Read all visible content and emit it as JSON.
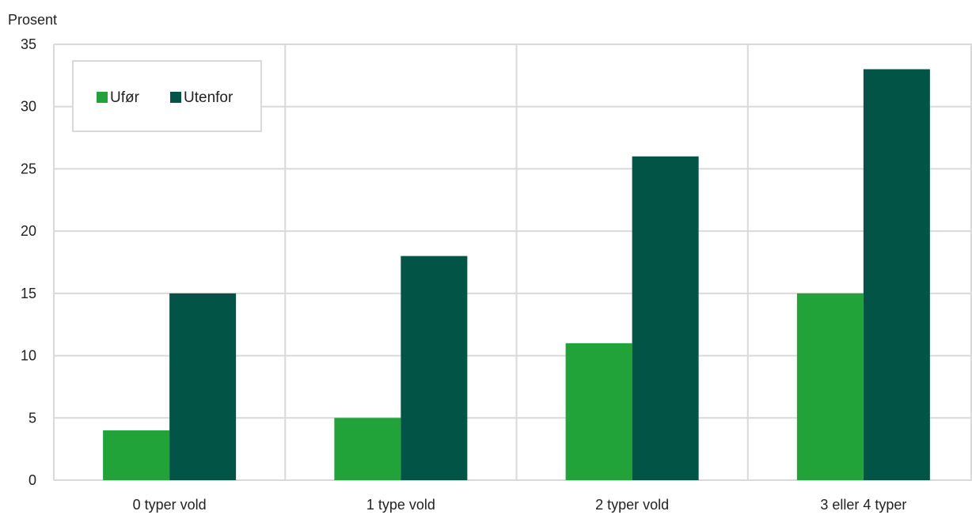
{
  "chart_data": {
    "type": "bar",
    "ylabel": "Prosent",
    "ylim": [
      0,
      35
    ],
    "yticks": [
      0,
      5,
      10,
      15,
      20,
      25,
      30,
      35
    ],
    "categories": [
      "0 typer vold",
      "1 type vold",
      "2 typer vold",
      "3 eller 4 typer"
    ],
    "series": [
      {
        "name": "Ufør",
        "values": [
          4,
          5,
          11,
          15
        ],
        "color": "#22a33a"
      },
      {
        "name": "Utenfor",
        "values": [
          15,
          18,
          26,
          33
        ],
        "color": "#025446"
      }
    ],
    "grid": true,
    "legend_position": "top-left"
  }
}
